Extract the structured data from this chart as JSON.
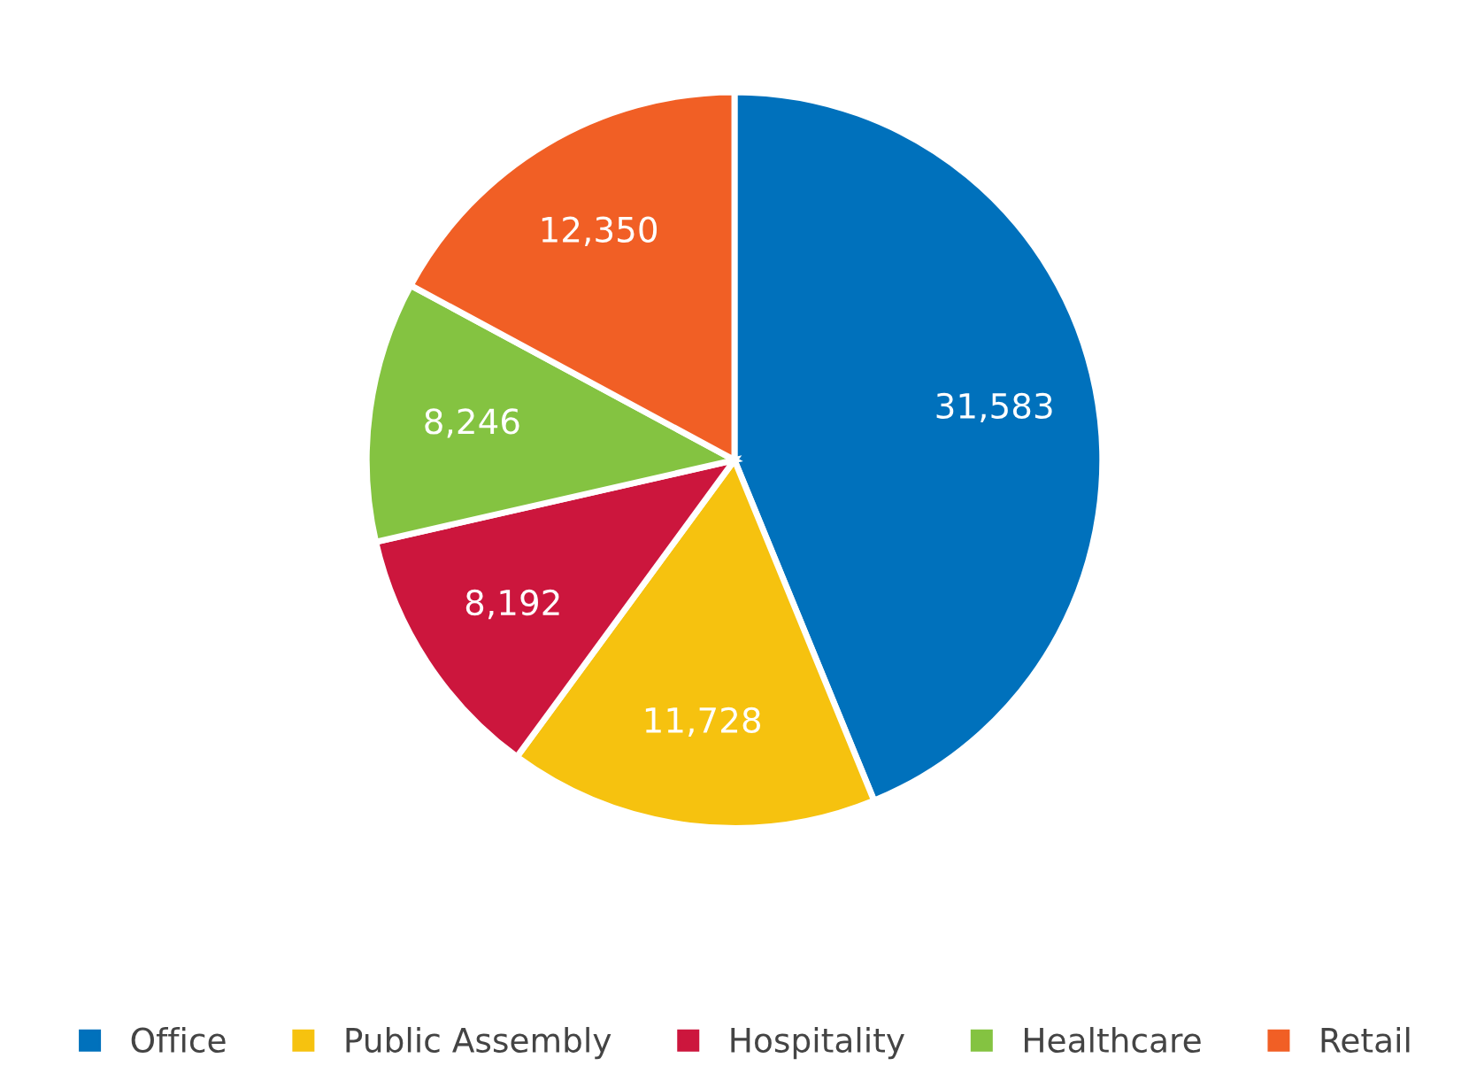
{
  "chart_data": {
    "type": "pie",
    "categories": [
      "Office",
      "Public Assembly",
      "Hospitality",
      "Healthcare",
      "Retail"
    ],
    "values": [
      31583,
      11728,
      8192,
      8246,
      12350
    ],
    "colors": [
      "#0071bc",
      "#f6c20f",
      "#cc163d",
      "#84c341",
      "#f15f25"
    ],
    "value_labels": [
      "31,583",
      "11,728",
      "8,192",
      "8,246",
      "12,350"
    ],
    "legend": "bottom"
  }
}
